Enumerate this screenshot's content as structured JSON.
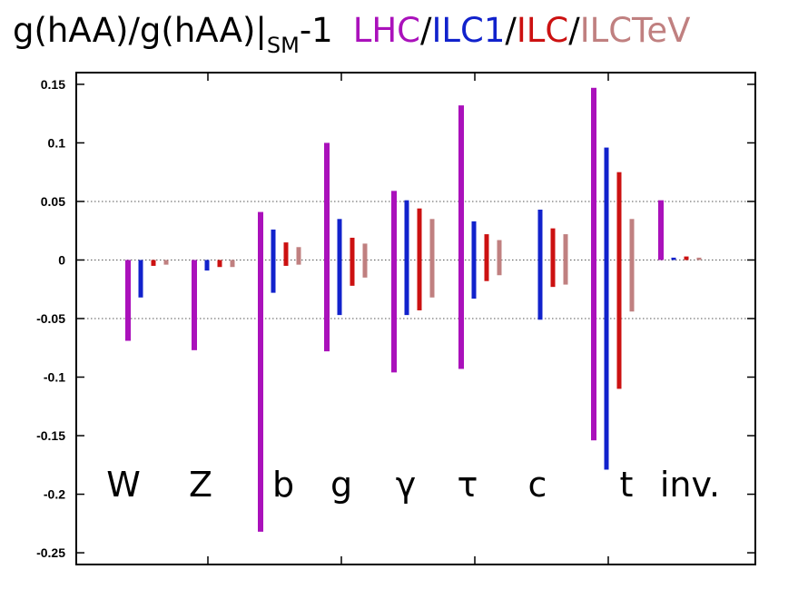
{
  "title": {
    "main": "g(hAA)/g(hAA)|",
    "sub": "SM",
    "suffix": "-1",
    "sep": "/"
  },
  "chart_data": {
    "type": "bar",
    "categories": [
      "W",
      "Z",
      "b",
      "g",
      "γ",
      "τ",
      "c",
      "t",
      "inv."
    ],
    "ylim": [
      -0.26,
      0.16
    ],
    "yticks": [
      "0.15",
      "0.1",
      "0.05",
      "0",
      "-0.05",
      "-0.1",
      "-0.15",
      "-0.2",
      "-0.25"
    ],
    "ytick_values": [
      0.15,
      0.1,
      0.05,
      0,
      -0.05,
      -0.1,
      -0.15,
      -0.2,
      -0.25
    ],
    "grid": "dotted horizontal lines at 0.05, 0, -0.05",
    "series": [
      {
        "name": "LHC",
        "color": "#aa11bb",
        "upper": [
          0,
          0,
          0.041,
          0.1,
          0.059,
          0.132,
          null,
          0.147,
          0.051
        ],
        "lower": [
          -0.069,
          -0.077,
          -0.232,
          -0.078,
          -0.096,
          -0.093,
          null,
          -0.154,
          0
        ]
      },
      {
        "name": "ILC1",
        "color": "#1122cc",
        "upper": [
          0,
          0,
          0.026,
          0.035,
          0.051,
          0.033,
          0.043,
          0.096,
          0.002
        ],
        "lower": [
          -0.032,
          -0.009,
          -0.028,
          -0.047,
          -0.047,
          -0.033,
          -0.051,
          -0.179,
          0
        ]
      },
      {
        "name": "ILC",
        "color": "#cc1111",
        "upper": [
          0,
          0,
          0.015,
          0.019,
          0.044,
          0.022,
          0.027,
          0.075,
          0.003
        ],
        "lower": [
          -0.005,
          -0.006,
          -0.005,
          -0.022,
          -0.043,
          -0.018,
          -0.023,
          -0.11,
          0
        ]
      },
      {
        "name": "ILCTeV",
        "color": "#c08080",
        "upper": [
          0,
          0,
          0.011,
          0.014,
          0.035,
          0.017,
          0.022,
          0.035,
          0.002
        ],
        "lower": [
          -0.004,
          -0.006,
          -0.004,
          -0.015,
          -0.032,
          -0.013,
          -0.021,
          -0.044,
          0
        ]
      }
    ]
  }
}
